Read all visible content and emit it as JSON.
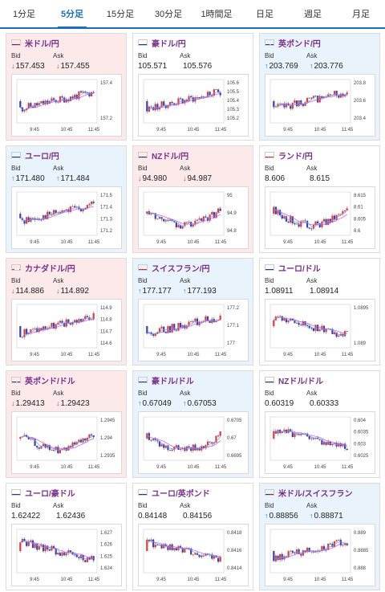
{
  "tabs": [
    {
      "label": "1分足",
      "active": false
    },
    {
      "label": "5分足",
      "active": true
    },
    {
      "label": "15分足",
      "active": false
    },
    {
      "label": "30分足",
      "active": false
    },
    {
      "label": "1時間足",
      "active": false
    },
    {
      "label": "日足",
      "active": false
    },
    {
      "label": "週足",
      "active": false
    },
    {
      "label": "月足",
      "active": false
    }
  ],
  "labels": {
    "bid": "Bid",
    "ask": "Ask"
  },
  "colors": {
    "accent": "#1b6dc1",
    "up": "#2a7bd1",
    "down": "#e03a3a",
    "pair": "#7a2f8c",
    "ma": "#c94fd6",
    "candle_down": "#3b3fb0",
    "candle_up": "#e03a3a"
  },
  "cards": [
    {
      "name": "米ドル/円",
      "flag": "us-flag",
      "trend": "down",
      "bid": "157.453",
      "ask": "157.455",
      "bid_dir": "down",
      "ask_dir": "down",
      "yticks": [
        "157.4",
        "157.2"
      ],
      "xticks": [
        "9:45",
        "10:45",
        "11:45"
      ],
      "seed": 11,
      "shape": "up"
    },
    {
      "name": "豪ドル/円",
      "flag": "au-flag",
      "trend": "flat",
      "bid": "105.571",
      "ask": "105.576",
      "bid_dir": "",
      "ask_dir": "",
      "yticks": [
        "105.6",
        "105.5",
        "105.4",
        "105.3",
        "105.2"
      ],
      "xticks": [
        "9:45",
        "10:45",
        "11:45"
      ],
      "seed": 23,
      "shape": "up"
    },
    {
      "name": "英ポンド/円",
      "flag": "uk-flag",
      "trend": "up",
      "bid": "203.769",
      "ask": "203.776",
      "bid_dir": "up",
      "ask_dir": "up",
      "yticks": [
        "203.8",
        "203.6",
        "203.4"
      ],
      "xticks": [
        "9:45",
        "10:45",
        "11:45"
      ],
      "seed": 37,
      "shape": "up"
    },
    {
      "name": "ユーロ/円",
      "flag": "eu-flag",
      "trend": "up",
      "bid": "171.480",
      "ask": "171.484",
      "bid_dir": "up",
      "ask_dir": "up",
      "yticks": [
        "171.5",
        "171.4",
        "171.3",
        "171.2"
      ],
      "xticks": [
        "9:45",
        "10:45",
        "11:45"
      ],
      "seed": 41,
      "shape": "up"
    },
    {
      "name": "NZドル/円",
      "flag": "nz-flag",
      "trend": "down",
      "bid": "94.980",
      "ask": "94.987",
      "bid_dir": "down",
      "ask_dir": "down",
      "yticks": [
        "95",
        "94.9",
        "94.8"
      ],
      "xticks": [
        "9:45",
        "10:45",
        "11:45"
      ],
      "seed": 53,
      "shape": "dip"
    },
    {
      "name": "ランド/円",
      "flag": "za-flag",
      "trend": "flat",
      "bid": "8.606",
      "ask": "8.615",
      "bid_dir": "",
      "ask_dir": "",
      "yticks": [
        "8.615",
        "8.61",
        "8.605",
        "8.6"
      ],
      "xticks": [
        "9:45",
        "10:45",
        "11:45"
      ],
      "seed": 67,
      "shape": "dip"
    },
    {
      "name": "カナダドル/円",
      "flag": "ca-flag",
      "trend": "down",
      "bid": "114.886",
      "ask": "114.892",
      "bid_dir": "down",
      "ask_dir": "down",
      "yticks": [
        "114.9",
        "114.8",
        "114.7",
        "114.6"
      ],
      "xticks": [
        "9:45",
        "10:45",
        "11:45"
      ],
      "seed": 71,
      "shape": "up"
    },
    {
      "name": "スイスフラン/円",
      "flag": "ch-flag",
      "trend": "up",
      "bid": "177.177",
      "ask": "177.193",
      "bid_dir": "up",
      "ask_dir": "up",
      "yticks": [
        "177.2",
        "177.1",
        "177"
      ],
      "xticks": [
        "9:45",
        "10:45",
        "11:45"
      ],
      "seed": 83,
      "shape": "up"
    },
    {
      "name": "ユーロ/ドル",
      "flag": "eu-flag",
      "trend": "flat",
      "bid": "1.08911",
      "ask": "1.08914",
      "bid_dir": "",
      "ask_dir": "",
      "yticks": [
        "1.0895",
        "1.089"
      ],
      "xticks": [
        "9:45",
        "10:45",
        "11:45"
      ],
      "seed": 97,
      "shape": "down"
    },
    {
      "name": "英ポンド/ドル",
      "flag": "uk-flag",
      "trend": "down",
      "bid": "1.29413",
      "ask": "1.29423",
      "bid_dir": "down",
      "ask_dir": "down",
      "yticks": [
        "1.2945",
        "1.294",
        "1.2935"
      ],
      "xticks": [
        "9:45",
        "10:45",
        "11:45"
      ],
      "seed": 101,
      "shape": "dip"
    },
    {
      "name": "豪ドル/ドル",
      "flag": "au-flag",
      "trend": "up",
      "bid": "0.67049",
      "ask": "0.67053",
      "bid_dir": "up",
      "ask_dir": "up",
      "yticks": [
        "0.6705",
        "0.67",
        "0.6695"
      ],
      "xticks": [
        "9:45",
        "10:45",
        "11:45"
      ],
      "seed": 113,
      "shape": "dip"
    },
    {
      "name": "NZドル/ドル",
      "flag": "nz-flag",
      "trend": "flat",
      "bid": "0.60319",
      "ask": "0.60333",
      "bid_dir": "",
      "ask_dir": "",
      "yticks": [
        "0.604",
        "0.6035",
        "0.603",
        "0.6025"
      ],
      "xticks": [
        "9:45",
        "10:45",
        "11:45"
      ],
      "seed": 127,
      "shape": "down"
    },
    {
      "name": "ユーロ/豪ドル",
      "flag": "eu-flag",
      "trend": "flat",
      "bid": "1.62422",
      "ask": "1.62436",
      "bid_dir": "",
      "ask_dir": "",
      "yticks": [
        "1.627",
        "1.626",
        "1.625",
        "1.624"
      ],
      "xticks": [
        "9:45",
        "10:45",
        "11:45"
      ],
      "seed": 131,
      "shape": "down"
    },
    {
      "name": "ユーロ/英ポンド",
      "flag": "eu-flag",
      "trend": "flat",
      "bid": "0.84148",
      "ask": "0.84156",
      "bid_dir": "",
      "ask_dir": "",
      "yticks": [
        "0.8418",
        "0.8416",
        "0.8414"
      ],
      "xticks": [
        "9:45",
        "10:45",
        "11:45"
      ],
      "seed": 139,
      "shape": "down"
    },
    {
      "name": "米ドル/スイスフラン",
      "flag": "us-flag",
      "trend": "up",
      "bid": "0.88856",
      "ask": "0.88871",
      "bid_dir": "up",
      "ask_dir": "up",
      "yticks": [
        "0.889",
        "0.8885",
        "0.888"
      ],
      "xticks": [
        "9:45",
        "10:45",
        "11:45"
      ],
      "seed": 149,
      "shape": "up"
    }
  ]
}
